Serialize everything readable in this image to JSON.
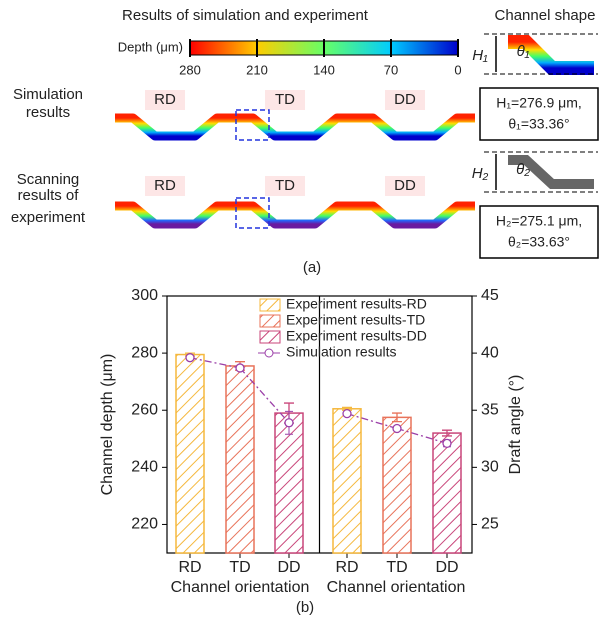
{
  "panel_a": {
    "title": "Results of simulation and experiment",
    "shape_title": "Channel shape",
    "depth_label": "Depth (μm)",
    "depth_ticks": [
      280,
      210,
      140,
      70,
      0
    ],
    "row_labels": [
      [
        "Simulation",
        "results"
      ],
      [
        "Scanning",
        "results of",
        "experiment"
      ]
    ],
    "orientations": [
      "RD",
      "TD",
      "DD"
    ],
    "shape_symbols": [
      [
        "H₁",
        "θ₁"
      ],
      [
        "H₂",
        "θ₂"
      ]
    ],
    "shape_boxes": [
      [
        "H₁=276.9 μm,",
        "θ₁=33.36°"
      ],
      [
        "H₂=275.1 μm,",
        "θ₂=33.63°"
      ]
    ],
    "label": "(a)"
  },
  "chart_data": {
    "type": "bar",
    "label": "(b)",
    "categories": [
      "RD",
      "TD",
      "DD",
      "RD",
      "TD",
      "DD"
    ],
    "xlabel": "Channel orientation",
    "ylabel": "Channel depth (μm)",
    "y2label": "Draft angle (°)",
    "ylim": [
      210,
      300
    ],
    "yticks": [
      220,
      240,
      260,
      280,
      300
    ],
    "y2lim": [
      22.5,
      45
    ],
    "y2ticks": [
      25,
      30,
      35,
      40,
      45
    ],
    "series": [
      {
        "name": "Experiment results-RD",
        "color": "#f5b83d",
        "values": [
          279.5,
          null,
          null,
          260.5,
          null,
          null
        ],
        "errors": [
          0.5,
          null,
          null,
          0.5,
          null,
          null
        ]
      },
      {
        "name": "Experiment results-TD",
        "color": "#e8735a",
        "values": [
          null,
          275.5,
          null,
          null,
          257.5,
          null
        ],
        "errors": [
          null,
          1.5,
          null,
          null,
          1.5,
          null
        ]
      },
      {
        "name": "Experiment results-DD",
        "color": "#c9467a",
        "values": [
          null,
          null,
          259,
          null,
          null,
          252
        ],
        "errors": [
          null,
          null,
          3.5,
          null,
          null,
          1
        ]
      },
      {
        "name": "Simulation results",
        "color": "#9b3fa8",
        "axis": "y2",
        "values": [
          39.6,
          38.7,
          33.9,
          34.7,
          33.4,
          32.1
        ],
        "errors": [
          null,
          null,
          1,
          null,
          null,
          0.3
        ]
      }
    ]
  }
}
